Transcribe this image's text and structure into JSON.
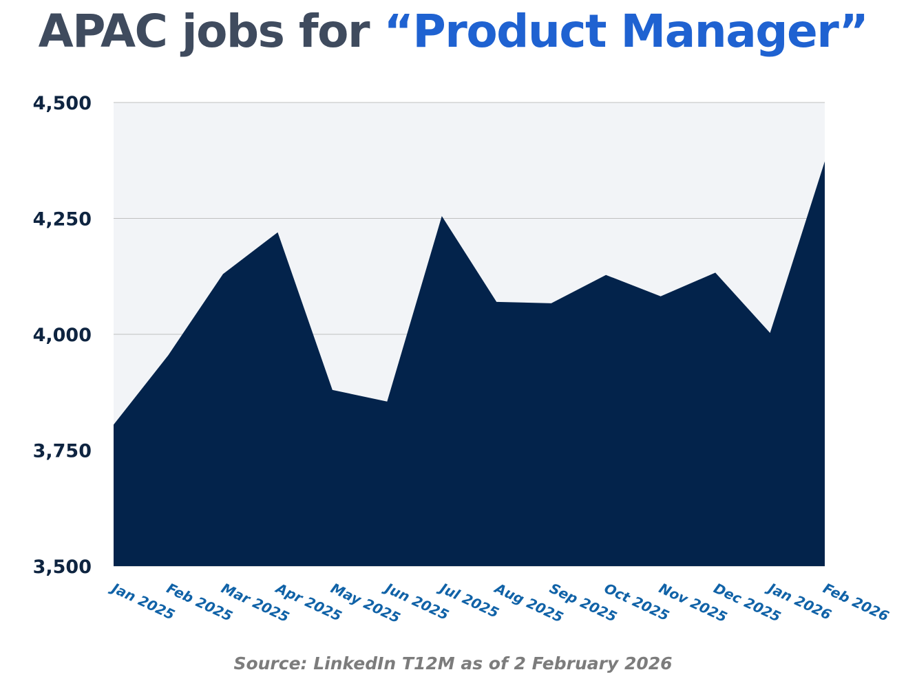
{
  "title": {
    "prefix": "APAC jobs for ",
    "highlight": "“Product Manager”"
  },
  "colors": {
    "title": "#3f4b5e",
    "highlight": "#1f62d1",
    "area_fill": "#03234b",
    "plot_background": "#f2f4f7",
    "gridline": "#bfbfbf",
    "y_tick_label": "#0e2440",
    "x_tick_label": "#1062a7",
    "source": "#7c7c7c"
  },
  "chart_data": {
    "type": "area",
    "title": "APAC jobs for “Product Manager”",
    "categories": [
      "Jan 2025",
      "Feb 2025",
      "Mar 2025",
      "Apr 2025",
      "May 2025",
      "Jun 2025",
      "Jul 2025",
      "Aug 2025",
      "Sep 2025",
      "Oct 2025",
      "Nov 2025",
      "Dec 2025",
      "Jan 2026",
      "Feb 2026"
    ],
    "values": [
      3805,
      3955,
      4130,
      4220,
      3880,
      3855,
      4255,
      4070,
      4067,
      4128,
      4082,
      4133,
      4003,
      4373
    ],
    "ylim": [
      3500,
      4500
    ],
    "yticks": [
      3500,
      3750,
      4000,
      4250,
      4500
    ],
    "ytick_labels": [
      "3,500",
      "3,750",
      "4,000",
      "4,250",
      "4,500"
    ],
    "grid": true,
    "xlabel": "",
    "ylabel": ""
  },
  "source": "Source: LinkedIn T12M as of 2 February 2026"
}
